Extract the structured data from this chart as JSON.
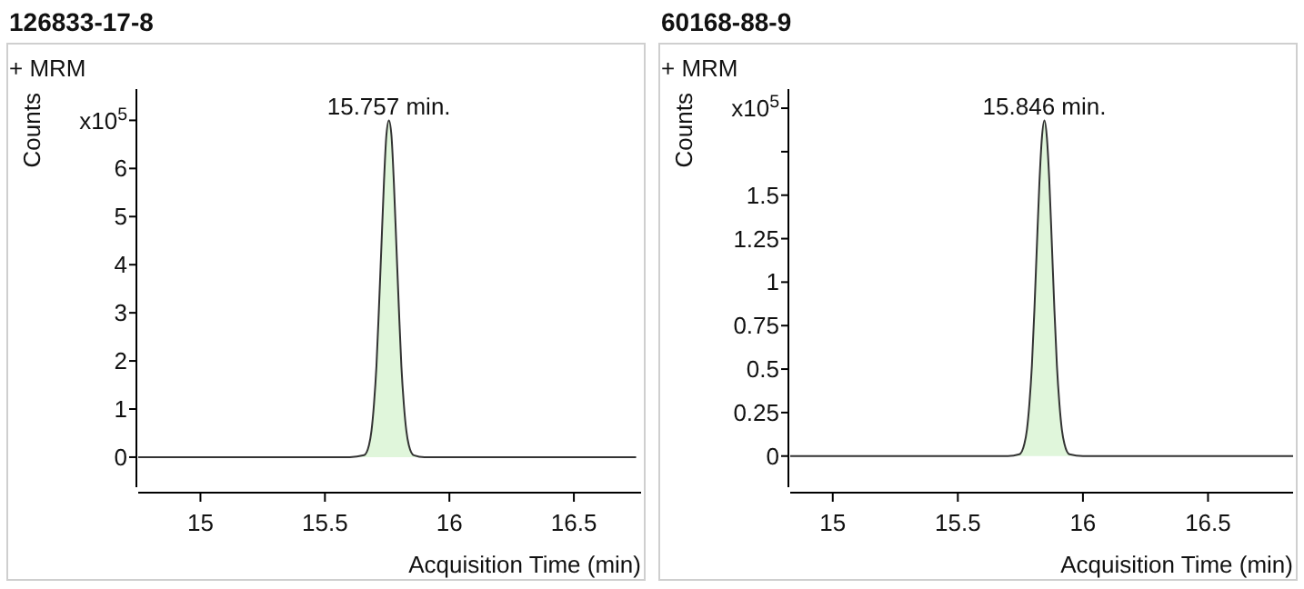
{
  "chart_data": [
    {
      "type": "area",
      "title": "126833-17-8",
      "xlabel": "Acquisition Time (min)",
      "ylabel": "Counts",
      "annotations": [
        "+ MRM",
        {
          "text": "15.757 min.",
          "x": 15.757,
          "y": 7.0
        }
      ],
      "xlim": [
        14.75,
        16.77
      ],
      "xticks": [
        15,
        15.5,
        16,
        16.5
      ],
      "ylim": [
        -0.7,
        7.65
      ],
      "yticks": [
        0,
        1,
        2,
        3,
        4,
        5,
        6,
        {
          "value": 7,
          "label": "x10$^{5}$"
        }
      ],
      "grid": false,
      "series": [
        {
          "color": "#e0f6db",
          "x": [
            14.75,
            15.6,
            15.657,
            15.677,
            15.687,
            15.697,
            15.707,
            15.717,
            15.727,
            15.737,
            15.747,
            15.757,
            15.767,
            15.777,
            15.787,
            15.797,
            15.807,
            15.817,
            15.827,
            15.837,
            15.857,
            15.9,
            16.75
          ],
          "values": [
            0,
            0,
            0.04,
            0.25,
            0.55,
            1.1,
            1.9,
            3.1,
            4.4,
            5.7,
            6.7,
            7.0,
            6.7,
            5.7,
            4.4,
            3.1,
            1.9,
            1.1,
            0.55,
            0.25,
            0.04,
            0,
            0
          ]
        }
      ]
    },
    {
      "type": "area",
      "title": "60168-88-9",
      "xlabel": "Acquisition Time (min)",
      "ylabel": "Counts",
      "annotations": [
        "+ MRM",
        {
          "text": "15.846 min.",
          "x": 15.846,
          "y": 1.93
        }
      ],
      "xlim": [
        14.83,
        16.84
      ],
      "xticks": [
        15,
        15.5,
        16,
        16.5
      ],
      "ylim": [
        -0.2,
        2.11
      ],
      "yticks": [
        0,
        0.25,
        0.5,
        0.75,
        1,
        1.25,
        1.5,
        {
          "value": 1.75,
          "label": null
        },
        {
          "value": 2,
          "label": "x10$^{5}$"
        }
      ],
      "grid": false,
      "series": [
        {
          "color": "#e0f6db",
          "x": [
            14.83,
            15.7,
            15.746,
            15.766,
            15.776,
            15.786,
            15.796,
            15.806,
            15.816,
            15.826,
            15.836,
            15.846,
            15.856,
            15.866,
            15.876,
            15.886,
            15.896,
            15.906,
            15.916,
            15.926,
            15.946,
            16.0,
            16.84
          ],
          "values": [
            0,
            0,
            0.01,
            0.07,
            0.15,
            0.3,
            0.52,
            0.84,
            1.21,
            1.57,
            1.83,
            1.93,
            1.83,
            1.57,
            1.21,
            0.84,
            0.52,
            0.3,
            0.15,
            0.07,
            0.01,
            0,
            0
          ]
        }
      ]
    }
  ]
}
